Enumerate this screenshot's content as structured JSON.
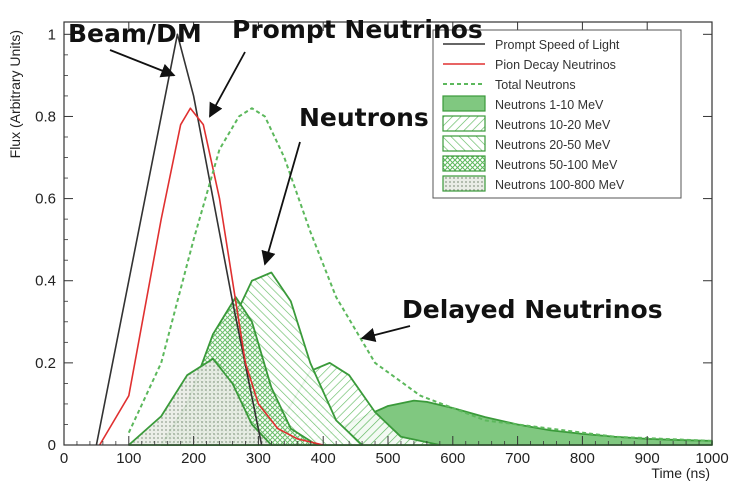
{
  "chart_data": {
    "type": "area",
    "xlabel": "Time (ns)",
    "ylabel": "Flux (Arbitrary Units)",
    "xlim": [
      0,
      1000
    ],
    "ylim": [
      0,
      1.03
    ],
    "x_ticks": [
      0,
      100,
      200,
      300,
      400,
      500,
      600,
      700,
      800,
      900,
      1000
    ],
    "y_ticks": [
      0,
      0.2,
      0.4,
      0.6,
      0.8,
      1
    ],
    "grid": false,
    "legend_position": "top-right",
    "series": [
      {
        "name": "Prompt Speed of Light",
        "style": "line",
        "color": "#333333",
        "x": [
          50,
          175,
          200,
          260,
          305
        ],
        "y": [
          0,
          1.0,
          0.85,
          0.35,
          0.0
        ]
      },
      {
        "name": "Pion Decay Neutrinos",
        "style": "line",
        "color": "#e03030",
        "x": [
          55,
          100,
          150,
          180,
          195,
          215,
          240,
          260,
          280,
          300,
          330,
          360,
          400
        ],
        "y": [
          0,
          0.12,
          0.55,
          0.78,
          0.82,
          0.78,
          0.6,
          0.4,
          0.2,
          0.1,
          0.04,
          0.015,
          0.0
        ]
      },
      {
        "name": "Total Neutrons",
        "style": "dashed",
        "color": "#5cb85c",
        "x": [
          100,
          150,
          200,
          240,
          270,
          290,
          310,
          340,
          380,
          420,
          480,
          550,
          650,
          750,
          850,
          1000
        ],
        "y": [
          0.03,
          0.2,
          0.5,
          0.72,
          0.8,
          0.82,
          0.8,
          0.7,
          0.52,
          0.36,
          0.2,
          0.12,
          0.06,
          0.04,
          0.02,
          0.01
        ]
      },
      {
        "name": "Neutrons 1-10 MeV",
        "style": "fill-solid",
        "color": "#5cb85c",
        "x": [
          360,
          400,
          450,
          500,
          540,
          560,
          600,
          650,
          700,
          750,
          800,
          850,
          900,
          950,
          1000
        ],
        "y": [
          0,
          0.02,
          0.06,
          0.095,
          0.108,
          0.105,
          0.09,
          0.068,
          0.05,
          0.036,
          0.027,
          0.02,
          0.015,
          0.012,
          0.01
        ]
      },
      {
        "name": "Neutrons 10-20 MeV",
        "style": "fill-hatch",
        "color": "#5cb85c",
        "x": [
          300,
          340,
          380,
          410,
          440,
          480,
          520,
          580
        ],
        "y": [
          0,
          0.07,
          0.18,
          0.2,
          0.17,
          0.08,
          0.02,
          0.0
        ]
      },
      {
        "name": "Neutrons 20-50 MeV",
        "style": "fill-hatch",
        "color": "#5cb85c",
        "x": [
          190,
          230,
          260,
          290,
          320,
          350,
          380,
          420,
          460
        ],
        "y": [
          0,
          0.12,
          0.3,
          0.4,
          0.42,
          0.35,
          0.2,
          0.06,
          0.0
        ]
      },
      {
        "name": "Neutrons 50-100 MeV",
        "style": "fill-hatch",
        "color": "#5cb85c",
        "x": [
          150,
          190,
          230,
          265,
          290,
          320,
          350,
          390
        ],
        "y": [
          0,
          0.1,
          0.27,
          0.36,
          0.3,
          0.14,
          0.04,
          0.0
        ]
      },
      {
        "name": "Neutrons 100-800 MeV",
        "style": "fill-dots",
        "color": "#5cb85c",
        "x": [
          100,
          150,
          190,
          230,
          260,
          290,
          320
        ],
        "y": [
          0,
          0.07,
          0.17,
          0.21,
          0.15,
          0.05,
          0.0
        ]
      }
    ],
    "annotations": [
      {
        "text": "Beam/DM",
        "target": [
          170,
          0.9
        ]
      },
      {
        "text": "Prompt Neutrinos",
        "target": [
          225,
          0.8
        ]
      },
      {
        "text": "Neutrons",
        "target": [
          310,
          0.44
        ]
      },
      {
        "text": "Delayed Neutrinos",
        "target": [
          460,
          0.26
        ]
      }
    ]
  }
}
